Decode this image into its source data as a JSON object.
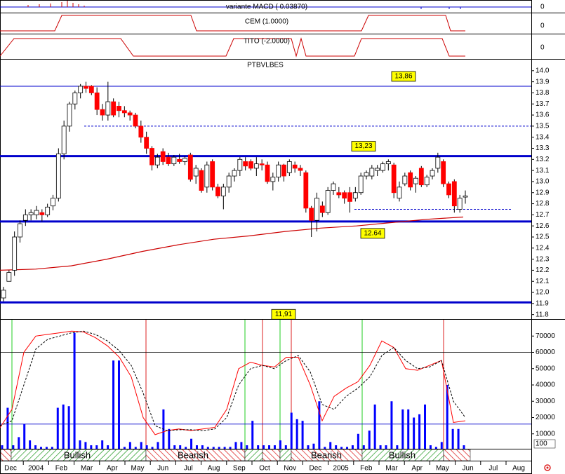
{
  "panels": {
    "macd": {
      "label": "variante MACD ( 0.03870)",
      "axis_label": "0"
    },
    "cem": {
      "label": "CEM (1.0000)",
      "axis_label": "0"
    },
    "tito": {
      "label": "TITO (-2.0000)",
      "axis_label": "0"
    }
  },
  "chart_data": {
    "type": "candlestick",
    "title": "PTBVLBES",
    "categories": [
      "Dec",
      "2004",
      "Feb",
      "Mar",
      "Apr",
      "May",
      "Jun",
      "Jul",
      "Aug",
      "Sep",
      "Oct",
      "Nov",
      "Dec",
      "2005",
      "Feb",
      "Mar",
      "Apr",
      "May",
      "Jun",
      "Jul",
      "Aug"
    ],
    "ohlc": [
      [
        11.95,
        12.05,
        11.92,
        12.02
      ],
      [
        12.1,
        12.2,
        12.1,
        12.18
      ],
      [
        12.2,
        12.55,
        12.15,
        12.5
      ],
      [
        12.5,
        12.65,
        12.45,
        12.62
      ],
      [
        12.65,
        12.75,
        12.6,
        12.7
      ],
      [
        12.7,
        12.75,
        12.65,
        12.72
      ],
      [
        12.7,
        12.78,
        12.66,
        12.74
      ],
      [
        12.72,
        12.75,
        12.64,
        12.7
      ],
      [
        12.7,
        12.8,
        12.68,
        12.77
      ],
      [
        12.78,
        12.88,
        12.74,
        12.85
      ],
      [
        12.85,
        13.3,
        12.82,
        13.25
      ],
      [
        13.25,
        13.55,
        13.2,
        13.5
      ],
      [
        13.5,
        13.72,
        13.45,
        13.7
      ],
      [
        13.7,
        13.82,
        13.65,
        13.8
      ],
      [
        13.8,
        13.88,
        13.75,
        13.86
      ],
      [
        13.86,
        13.9,
        13.8,
        13.84
      ],
      [
        13.86,
        13.87,
        13.78,
        13.8
      ],
      [
        13.8,
        13.85,
        13.6,
        13.65
      ],
      [
        13.65,
        13.7,
        13.55,
        13.6
      ],
      [
        13.6,
        13.9,
        13.55,
        13.72
      ],
      [
        13.72,
        13.75,
        13.58,
        13.6
      ],
      [
        13.68,
        13.72,
        13.58,
        13.64
      ],
      [
        13.64,
        13.68,
        13.58,
        13.62
      ],
      [
        13.62,
        13.64,
        13.55,
        13.6
      ],
      [
        13.6,
        13.62,
        13.48,
        13.5
      ],
      [
        13.5,
        13.55,
        13.35,
        13.4
      ],
      [
        13.4,
        13.45,
        13.25,
        13.3
      ],
      [
        13.3,
        13.32,
        13.1,
        13.15
      ],
      [
        13.15,
        13.25,
        13.12,
        13.22
      ],
      [
        13.27,
        13.3,
        13.15,
        13.18
      ],
      [
        13.22,
        13.26,
        13.14,
        13.16
      ],
      [
        13.16,
        13.24,
        13.14,
        13.22
      ],
      [
        13.2,
        13.25,
        13.16,
        13.18
      ],
      [
        13.18,
        13.23,
        13.15,
        13.21
      ],
      [
        13.24,
        13.26,
        13.0,
        13.02
      ],
      [
        13.05,
        13.15,
        12.98,
        13.12
      ],
      [
        13.1,
        13.12,
        12.9,
        12.92
      ],
      [
        12.95,
        13.18,
        12.9,
        13.15
      ],
      [
        13.18,
        13.2,
        12.92,
        12.95
      ],
      [
        12.95,
        12.98,
        12.85,
        12.87
      ],
      [
        12.87,
        12.98,
        12.75,
        12.95
      ],
      [
        12.95,
        13.08,
        12.9,
        13.05
      ],
      [
        13.05,
        13.12,
        13.0,
        13.1
      ],
      [
        13.1,
        13.22,
        13.05,
        13.2
      ],
      [
        13.18,
        13.22,
        13.1,
        13.14
      ],
      [
        13.18,
        13.2,
        13.1,
        13.12
      ],
      [
        13.12,
        13.22,
        13.05,
        13.16
      ],
      [
        13.16,
        13.2,
        13.1,
        13.15
      ],
      [
        13.15,
        13.18,
        12.98,
        13.0
      ],
      [
        13.0,
        13.08,
        12.92,
        13.04
      ],
      [
        13.04,
        13.18,
        13.0,
        13.15
      ],
      [
        13.15,
        13.16,
        13.0,
        13.05
      ],
      [
        13.08,
        13.2,
        13.05,
        13.18
      ],
      [
        13.15,
        13.18,
        13.08,
        13.12
      ],
      [
        13.12,
        13.15,
        13.05,
        13.1
      ],
      [
        13.08,
        13.1,
        12.72,
        12.76
      ],
      [
        12.76,
        12.78,
        12.5,
        12.65
      ],
      [
        12.65,
        12.9,
        12.55,
        12.85
      ],
      [
        12.78,
        12.82,
        12.68,
        12.72
      ],
      [
        12.72,
        12.95,
        12.7,
        12.92
      ],
      [
        12.92,
        13.0,
        12.88,
        12.98
      ],
      [
        12.9,
        12.95,
        12.85,
        12.88
      ],
      [
        12.9,
        12.92,
        12.8,
        12.85
      ],
      [
        12.9,
        12.95,
        12.72,
        12.82
      ],
      [
        12.85,
        12.95,
        12.82,
        12.9
      ],
      [
        12.9,
        13.08,
        12.88,
        13.05
      ],
      [
        13.05,
        13.1,
        13.02,
        13.08
      ],
      [
        13.05,
        13.15,
        13.02,
        13.12
      ],
      [
        13.1,
        13.15,
        13.05,
        13.12
      ],
      [
        13.1,
        13.18,
        13.08,
        13.16
      ],
      [
        13.16,
        13.2,
        13.1,
        13.18
      ],
      [
        13.15,
        13.17,
        12.85,
        12.9
      ],
      [
        12.85,
        13.0,
        12.82,
        12.95
      ],
      [
        12.98,
        13.08,
        12.96,
        13.05
      ],
      [
        13.08,
        13.1,
        12.92,
        12.95
      ],
      [
        12.98,
        13.05,
        12.9,
        13.03
      ],
      [
        13.12,
        13.14,
        12.95,
        12.97
      ],
      [
        12.97,
        13.06,
        12.95,
        13.04
      ],
      [
        13.05,
        13.12,
        13.02,
        13.1
      ],
      [
        13.12,
        13.26,
        13.08,
        13.22
      ],
      [
        13.18,
        13.2,
        12.95,
        12.98
      ],
      [
        12.98,
        13.0,
        12.85,
        12.88
      ],
      [
        13.0,
        13.02,
        12.72,
        12.78
      ],
      [
        12.75,
        12.88,
        12.72,
        12.85
      ],
      [
        12.86,
        12.92,
        12.8,
        12.87
      ]
    ],
    "up_color": "#ffffff",
    "down_color": "#ff0000",
    "ylim": [
      11.76,
      14.1
    ],
    "yticks": [
      {
        "value": 14,
        "label": "14.0"
      },
      13.9,
      13.8,
      13.7,
      13.6,
      13.5,
      13.4,
      13.3,
      13.2,
      13.1,
      {
        "value": 13,
        "label": "13.0"
      },
      12.9,
      12.8,
      12.7,
      12.6,
      12.5,
      12.4,
      12.3,
      12.2,
      12.1,
      {
        "value": 12,
        "label": "12.0"
      },
      11.9,
      11.8
    ],
    "levels": [
      {
        "value": 13.86,
        "label": "13,86"
      },
      {
        "value": 13.23,
        "label": "13,23"
      },
      {
        "value": 12.64,
        "label": "12.64"
      },
      {
        "value": 11.91,
        "label": "11,91"
      }
    ],
    "dashed_levels": [
      13.5,
      12.75
    ],
    "level_color": "#0000cc",
    "moving_average": {
      "color": "#cc0000",
      "values": [
        12.2,
        12.21,
        12.24,
        12.3,
        12.37,
        12.43,
        12.48,
        12.51,
        12.55,
        12.58,
        12.6,
        12.63,
        12.66,
        12.68
      ]
    },
    "oscillator": {
      "type": "line",
      "ylim": [
        0,
        80000
      ],
      "yticks": [
        10000,
        20000,
        30000,
        40000,
        50000,
        60000,
        70000
      ],
      "unit_label": "100",
      "ref_lines": [
        60000,
        16000
      ],
      "series": [
        {
          "color": "#ff0000",
          "values": [
            13800,
            25000,
            60000,
            70000,
            71000,
            72000,
            73000,
            72500,
            69000,
            64000,
            57000,
            45000,
            20000,
            9500,
            12000,
            13000,
            12000,
            13000,
            14000,
            25000,
            50000,
            54000,
            52000,
            51000,
            57000,
            57000,
            40000,
            18000,
            33000,
            38000,
            42000,
            52000,
            67000,
            63000,
            50000,
            49000,
            52000,
            55000,
            17000,
            18000
          ]
        },
        {
          "color": "#000000",
          "dashed": true,
          "values": [
            15000,
            18000,
            40000,
            62000,
            68000,
            70000,
            72000,
            73000,
            71000,
            67000,
            61000,
            52000,
            35000,
            15000,
            12000,
            12500,
            12500,
            12000,
            13000,
            20000,
            40000,
            50000,
            52000,
            50000,
            55000,
            58000,
            48000,
            28000,
            25000,
            33000,
            38000,
            45000,
            58000,
            63000,
            55000,
            50000,
            51000,
            55000,
            30000,
            20000
          ]
        }
      ],
      "volume": {
        "color": "#0000ff",
        "values": [
          3000,
          26000,
          3000,
          8000,
          16000,
          6000,
          3000,
          2000,
          2000,
          2000,
          26000,
          28000,
          27000,
          72000,
          6000,
          5000,
          3000,
          3000,
          6000,
          3000,
          55000,
          55000,
          2000,
          5000,
          2000,
          5000,
          3000,
          2000,
          5000,
          25000,
          13000,
          3000,
          3000,
          2000,
          7000,
          3000,
          3000,
          2000,
          2000,
          2000,
          2000,
          2000,
          5000,
          5000,
          3000,
          18000,
          3000,
          3000,
          3000,
          3000,
          6000,
          3000,
          23000,
          19000,
          18000,
          3000,
          4000,
          30000,
          2000,
          5000,
          3000,
          2000,
          2000,
          3000,
          10000,
          3000,
          12000,
          28000,
          3000,
          3000,
          30000,
          3000,
          25000,
          25000,
          20000,
          22000,
          28000,
          3000,
          2000,
          5000,
          40000,
          13000,
          13000,
          3000
        ]
      }
    },
    "regime_labels": [
      "Bullish",
      "Bearish",
      "Bearish",
      "Bullish"
    ]
  }
}
